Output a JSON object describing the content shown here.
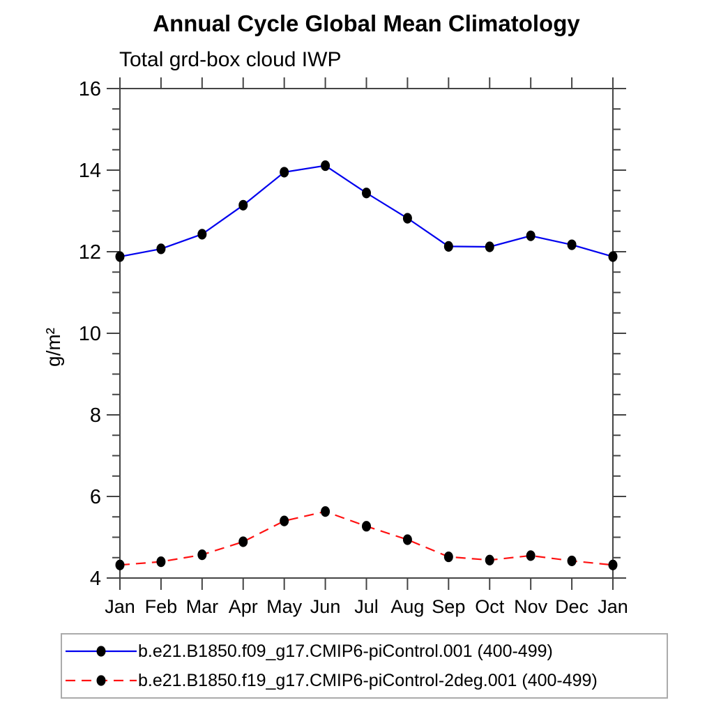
{
  "chart_data": {
    "type": "line",
    "title": "Annual Cycle Global Mean Climatology",
    "subtitle": "Total grd-box cloud IWP",
    "ylabel": "g/m²",
    "xlabel": "",
    "ylim": [
      4,
      16
    ],
    "y_major_ticks": [
      4,
      6,
      8,
      10,
      12,
      14,
      16
    ],
    "y_minor_step": 0.5,
    "categories": [
      "Jan",
      "Feb",
      "Mar",
      "Apr",
      "May",
      "Jun",
      "Jul",
      "Aug",
      "Sep",
      "Oct",
      "Nov",
      "Dec",
      "Jan"
    ],
    "grid": false,
    "legend_position": "bottom-left-box",
    "frame_color": "#444444",
    "marker_color": "#000000",
    "series": [
      {
        "name": "b.e21.B1850.f09_g17.CMIP6-piControl.001 (400-499)",
        "color": "#0000ee",
        "style": "solid",
        "marker": "filled-circle",
        "values": [
          11.88,
          12.07,
          12.43,
          13.14,
          13.95,
          14.11,
          13.44,
          12.82,
          12.13,
          12.12,
          12.39,
          12.17,
          11.88
        ]
      },
      {
        "name": "b.e21.B1850.f19_g17.CMIP6-piControl-2deg.001 (400-499)",
        "color": "#ff1111",
        "style": "dashed",
        "marker": "filled-circle",
        "values": [
          4.32,
          4.4,
          4.57,
          4.89,
          5.4,
          5.63,
          5.27,
          4.94,
          4.52,
          4.44,
          4.55,
          4.42,
          4.32
        ]
      }
    ]
  }
}
